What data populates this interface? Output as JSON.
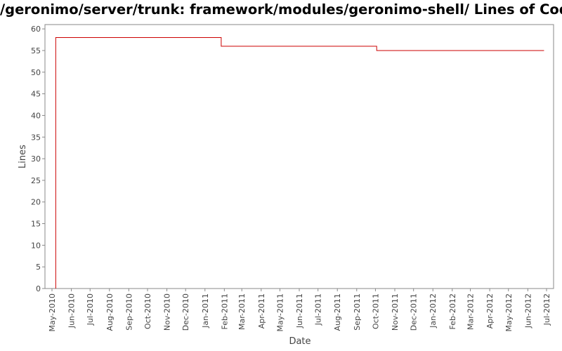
{
  "chart_data": {
    "type": "line",
    "title": "/geronimo/server/trunk: framework/modules/geronimo-shell/ Lines of Code",
    "xlabel": "Date",
    "ylabel": "Lines",
    "ylim": [
      0,
      61
    ],
    "yticks": [
      0,
      5,
      10,
      15,
      20,
      25,
      30,
      35,
      40,
      45,
      50,
      55,
      60
    ],
    "x_tick_labels": [
      "May-2010",
      "Jun-2010",
      "Jul-2010",
      "Aug-2010",
      "Sep-2010",
      "Oct-2010",
      "Nov-2010",
      "Dec-2010",
      "Jan-2011",
      "Feb-2011",
      "Mar-2011",
      "Apr-2011",
      "May-2011",
      "Jun-2011",
      "Jul-2011",
      "Aug-2011",
      "Sep-2011",
      "Oct-2011",
      "Nov-2011",
      "Dec-2011",
      "Jan-2012",
      "Feb-2012",
      "Mar-2012",
      "Apr-2012",
      "May-2012",
      "Jun-2012",
      "Jul-2012"
    ],
    "x_start": "2010-04-22",
    "x_end": "2012-07-10",
    "step": true,
    "grid": false,
    "legend": "none",
    "color": "#cc0000",
    "series": [
      {
        "points": [
          {
            "x": "2010-05-07",
            "y": 0
          },
          {
            "x": "2010-05-07",
            "y": 58
          },
          {
            "x": "2011-01-27",
            "y": 56
          },
          {
            "x": "2011-10-03",
            "y": 55
          },
          {
            "x": "2012-06-27",
            "y": 55
          }
        ]
      }
    ]
  }
}
